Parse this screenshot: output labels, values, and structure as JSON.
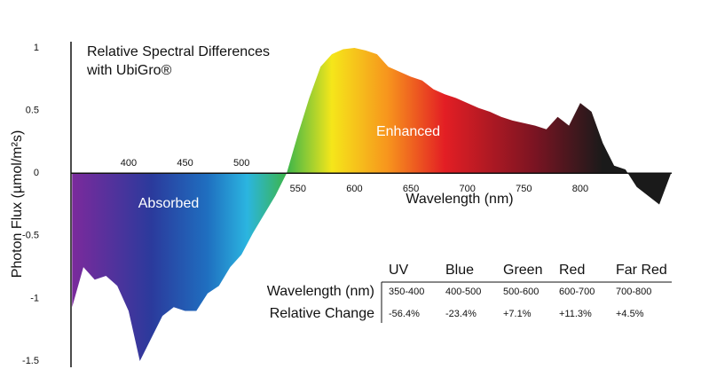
{
  "chart_data": {
    "type": "area",
    "title": "Relative Spectral Differences with UbiGro®",
    "x_label": "Wavelength (nm)",
    "y_label": "Photon Flux (µmol/m²s)",
    "annotations": [
      "Enhanced",
      "Absorbed"
    ],
    "x": [
      350,
      360,
      370,
      380,
      390,
      400,
      410,
      420,
      430,
      440,
      450,
      460,
      470,
      480,
      490,
      500,
      510,
      520,
      530,
      540,
      550,
      560,
      570,
      580,
      590,
      600,
      610,
      620,
      630,
      640,
      650,
      660,
      670,
      680,
      690,
      700,
      710,
      720,
      730,
      740,
      750,
      760,
      770,
      780,
      790,
      800,
      810,
      820,
      830,
      840,
      850,
      860,
      870,
      880
    ],
    "values": [
      -1.07,
      -0.75,
      -0.85,
      -0.82,
      -0.9,
      -1.1,
      -1.5,
      -1.32,
      -1.14,
      -1.07,
      -1.1,
      -1.1,
      -0.96,
      -0.9,
      -0.75,
      -0.65,
      -0.48,
      -0.33,
      -0.18,
      0,
      0.31,
      0.6,
      0.85,
      0.95,
      0.99,
      1.0,
      0.98,
      0.95,
      0.85,
      0.81,
      0.77,
      0.74,
      0.67,
      0.63,
      0.6,
      0.56,
      0.52,
      0.49,
      0.45,
      0.42,
      0.4,
      0.38,
      0.35,
      0.45,
      0.38,
      0.56,
      0.49,
      0.24,
      0.06,
      0.03,
      -0.11,
      -0.18,
      -0.25,
      -0.01
    ],
    "gradient": [
      {
        "x": 350,
        "color": "#7b2a9c"
      },
      {
        "x": 420,
        "color": "#2b3a9c"
      },
      {
        "x": 470,
        "color": "#1f6fc0"
      },
      {
        "x": 505,
        "color": "#2bb5e0"
      },
      {
        "x": 540,
        "color": "#3cb54a"
      },
      {
        "x": 580,
        "color": "#f5e61a"
      },
      {
        "x": 630,
        "color": "#f7941d"
      },
      {
        "x": 680,
        "color": "#e31e24"
      },
      {
        "x": 760,
        "color": "#7a1422"
      },
      {
        "x": 820,
        "color": "#1a1a1a"
      }
    ],
    "xlim": [
      349,
      881
    ],
    "xticks": [
      400,
      450,
      500,
      550,
      600,
      650,
      700,
      750,
      800
    ],
    "ylim": [
      -1.55,
      1.05
    ],
    "yticks": [
      1,
      0.5,
      0,
      -0.5,
      -1,
      -1.5
    ]
  },
  "table": {
    "columns": [
      "UV",
      "Blue",
      "Green",
      "Red",
      "Far Red"
    ],
    "rows": [
      {
        "label": "Wavelength (nm)",
        "cells": [
          "350-400",
          "400-500",
          "500-600",
          "600-700",
          "700-800"
        ]
      },
      {
        "label": "Relative Change",
        "cells": [
          "-56.4%",
          "-23.4%",
          "+7.1%",
          "+11.3%",
          "+4.5%"
        ]
      }
    ]
  }
}
